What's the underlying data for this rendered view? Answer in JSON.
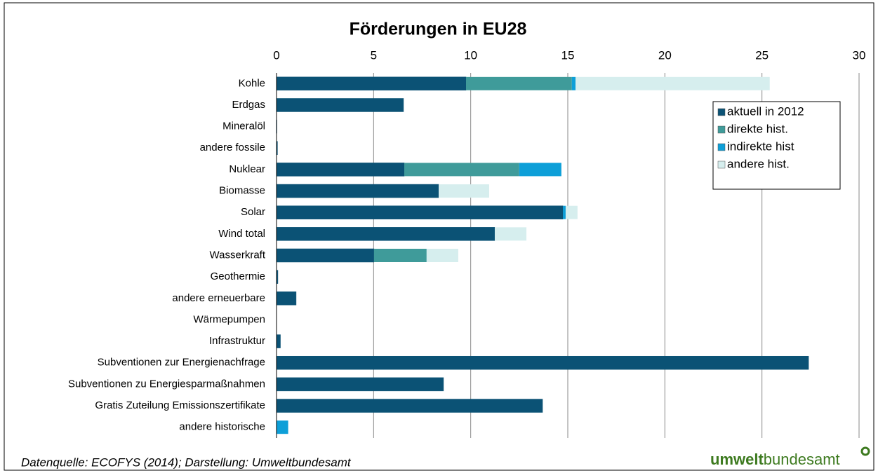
{
  "chart_data": {
    "type": "stacked_barh",
    "title": "Förderungen in EU28",
    "categories": [
      "Kohle",
      "Erdgas",
      "Mineralöl",
      "andere fossile",
      "Nuklear",
      "Biomasse",
      "Solar",
      "Wind total",
      "Wasserkraft",
      "Geothermie",
      "andere erneuerbare",
      "Wärmepumpen",
      "Infrastruktur",
      "Subventionen zur Energienachfrage",
      "Subventionen zu Energiesparmaßnahmen",
      "Gratis Zuteilung Emissionszertifikate",
      "andere historische"
    ],
    "series": [
      {
        "name": "aktuell in 2012",
        "color": "#0b5275",
        "values": [
          9.76,
          6.54,
          0.02,
          0.05,
          6.58,
          8.35,
          14.75,
          11.24,
          5.02,
          0.07,
          1.01,
          0,
          0.2,
          27.4,
          8.6,
          13.7,
          0
        ]
      },
      {
        "name": "direkte hist.",
        "color": "#3f9b9a",
        "values": [
          5.45,
          0,
          0,
          0,
          5.92,
          0,
          0,
          0,
          2.71,
          0,
          0,
          0,
          0,
          0,
          0,
          0,
          0
        ]
      },
      {
        "name": "indirekte hist",
        "color": "#0d9fd8",
        "values": [
          0.19,
          0,
          0,
          0,
          2.17,
          0,
          0.14,
          0,
          0,
          0,
          0,
          0,
          0,
          0,
          0,
          0,
          0.6
        ]
      },
      {
        "name": "andere hist.",
        "color": "#d6eeee",
        "values": [
          10.0,
          0,
          0,
          0,
          0,
          2.6,
          0.61,
          1.63,
          1.63,
          0,
          0,
          0,
          0,
          0,
          0,
          0,
          0
        ]
      }
    ],
    "xlim": [
      0,
      30
    ],
    "xticks": [
      0,
      5,
      10,
      15,
      20,
      25,
      30
    ],
    "grid": true,
    "legend": "upper right",
    "source": "Datenquelle: ECOFYS (2014); Darstellung: Umweltbundesamt",
    "logo": {
      "bold": "umwelt",
      "regular": "bundesamt"
    }
  }
}
